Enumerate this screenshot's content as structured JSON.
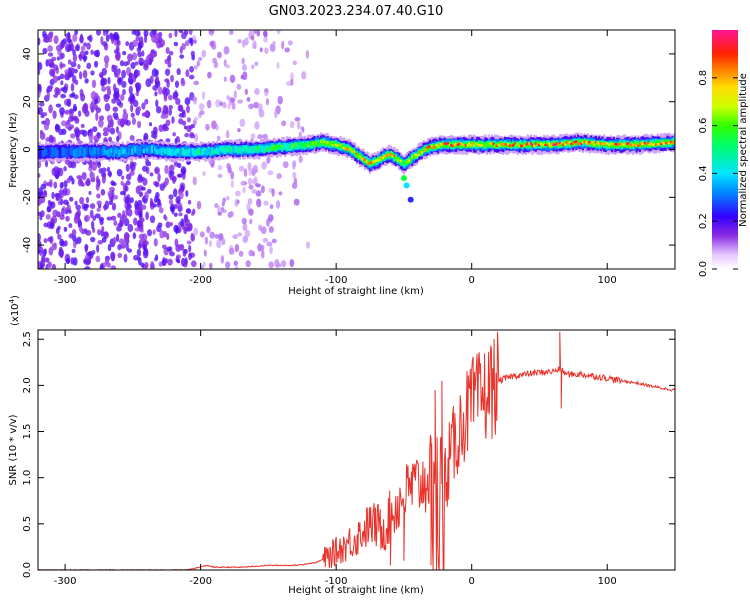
{
  "title": "GN03.2023.234.07.40.G10",
  "colors": {
    "snr_line": "#e8322a",
    "axis": "#000000",
    "scatter_noise": "#8a3cf0"
  },
  "chart_data": [
    {
      "type": "heatmap",
      "xlabel": "Height of straight line (km)",
      "ylabel": "Frequency (Hz)",
      "xlim": [
        -320,
        150
      ],
      "ylim": [
        -50,
        50
      ],
      "x_ticks": [
        -300,
        -200,
        -100,
        0,
        100
      ],
      "x_tick_labels": [
        "-300",
        "-200",
        "-100",
        "0",
        "100"
      ],
      "y_ticks": [
        -40,
        -20,
        0,
        20,
        40
      ],
      "y_tick_labels": [
        "-40",
        "-20",
        "0",
        "20",
        "40"
      ],
      "colorbar": {
        "label": "Normalized spectral amplitude",
        "range": [
          0,
          1
        ],
        "ticks": [
          0.0,
          0.2,
          0.4,
          0.6,
          0.8
        ],
        "tick_labels": [
          "0.0",
          "0.2",
          "0.4",
          "0.6",
          "0.8"
        ],
        "colormap": "rainbow (white-violet-blue-cyan-green-yellow-orange-red-magenta)"
      },
      "ridge": {
        "description": "dominant frequency track vs height",
        "x": [
          -320,
          -300,
          -280,
          -260,
          -240,
          -220,
          -200,
          -180,
          -160,
          -140,
          -120,
          -110,
          -100,
          -90,
          -85,
          -80,
          -75,
          -70,
          -65,
          -60,
          -55,
          -50,
          -45,
          -40,
          -35,
          -30,
          -20,
          -10,
          0,
          20,
          40,
          60,
          80,
          100,
          120,
          150
        ],
        "y": [
          -1,
          -1,
          -1,
          -1,
          0,
          -1,
          -1,
          0,
          0,
          1,
          2,
          3,
          2,
          0,
          -2,
          -4,
          -6,
          -5,
          -3,
          -2,
          -4,
          -6,
          -4,
          -2,
          0,
          1,
          2,
          2,
          2,
          2,
          2,
          2,
          3,
          2,
          2,
          3
        ],
        "amplitude": [
          0.25,
          0.3,
          0.3,
          0.35,
          0.35,
          0.4,
          0.45,
          0.45,
          0.5,
          0.55,
          0.6,
          0.65,
          0.7,
          0.75,
          0.75,
          0.75,
          0.8,
          0.85,
          0.8,
          0.8,
          0.7,
          0.6,
          0.7,
          0.75,
          0.8,
          0.85,
          0.85,
          0.85,
          0.8,
          0.8,
          0.85,
          0.9,
          0.9,
          0.85,
          0.9,
          0.85
        ]
      },
      "noise_region": {
        "x_range": [
          -320,
          -120
        ],
        "amplitude": "0.05-0.35"
      }
    },
    {
      "type": "line",
      "xlabel": "Height of straight line (km)",
      "ylabel": "SNR (10 * v/v)",
      "y_scale_label": "(x10",
      "y_scale_exp": "4",
      "y_scale_close": ")",
      "xlim": [
        -320,
        150
      ],
      "ylim": [
        0,
        2.6
      ],
      "x_ticks": [
        -300,
        -200,
        -100,
        0,
        100
      ],
      "x_tick_labels": [
        "-300",
        "-200",
        "-100",
        "0",
        "100"
      ],
      "y_ticks": [
        0.0,
        0.5,
        1.0,
        1.5,
        2.0,
        2.5
      ],
      "y_tick_labels": [
        "0.0",
        "0.5",
        "1.0",
        "1.5",
        "2.0",
        "2.5"
      ],
      "series": [
        {
          "x": [
            -320,
            -280,
            -240,
            -210,
            -195,
            -190,
            -170,
            -150,
            -130,
            -115,
            -105,
            -95,
            -85,
            -75,
            -65,
            -55,
            -45,
            -35,
            -25,
            -20,
            -10,
            0,
            10,
            20,
            30,
            40,
            50,
            60,
            65,
            70,
            80,
            90,
            100,
            110,
            120,
            130,
            140,
            150
          ],
          "y": [
            0.0,
            0.0,
            0.0,
            0.0,
            0.05,
            0.03,
            0.03,
            0.05,
            0.05,
            0.08,
            0.15,
            0.25,
            0.35,
            0.5,
            0.45,
            0.7,
            0.9,
            0.95,
            1.2,
            1.0,
            1.5,
            1.8,
            1.9,
            2.05,
            2.1,
            2.12,
            2.14,
            2.15,
            2.18,
            2.12,
            2.12,
            2.1,
            2.08,
            2.05,
            2.03,
            2.0,
            1.97,
            1.95
          ],
          "spikes": [
            {
              "x": 65,
              "y": 2.58
            },
            {
              "x": 66,
              "y": 1.75
            },
            {
              "x": -27,
              "y": 1.95
            },
            {
              "x": -22,
              "y": 2.05
            },
            {
              "x": -30,
              "y": 0.05
            },
            {
              "x": -50,
              "y": 0.1
            },
            {
              "x": -60,
              "y": 0.05
            }
          ]
        }
      ]
    }
  ]
}
